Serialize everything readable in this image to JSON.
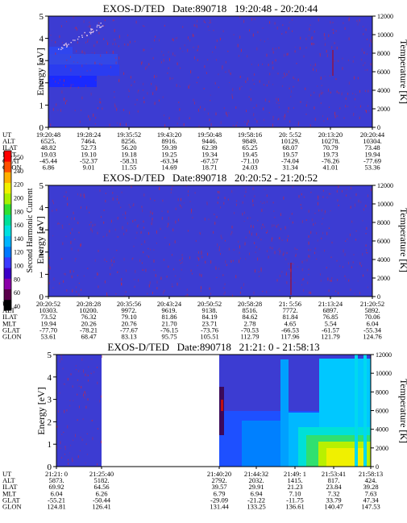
{
  "chart_data": [
    {
      "type": "heatmap",
      "title": "EXOS-D/TED   Date:890718   19:20:48 - 20:20:44",
      "ylabel": "Energy [eV]",
      "y2label": "Temperature [K]",
      "ylim": [
        0,
        5
      ],
      "y2lim": [
        0,
        12000
      ],
      "yticks": [
        "0",
        "1",
        "2",
        "3",
        "4",
        "5"
      ],
      "y2ticks": [
        "0",
        "2000",
        "4000",
        "6000",
        "8000",
        "10000",
        "12000"
      ],
      "ephemeris": {
        "row_labels": [
          "UT",
          "ALT",
          "ILAT",
          "MLT",
          "GLAT",
          "GLON"
        ],
        "columns": [
          [
            "19:20:48",
            "6525.",
            "48.82",
            "19.03",
            "-45.44",
            "6.86"
          ],
          [
            "19:28:24",
            "7464.",
            "52.73",
            "19.10",
            "-52.37",
            "9.01"
          ],
          [
            "19:35:52",
            "8256.",
            "56.20",
            "19.18",
            "-58.31",
            "11.55"
          ],
          [
            "19:43:20",
            "8916.",
            "59.39",
            "19.25",
            "-63.34",
            "14.69"
          ],
          [
            "19:50:48",
            "9446.",
            "62.39",
            "19.34",
            "-67.57",
            "18.71"
          ],
          [
            "19:58:16",
            "9849.",
            "65.25",
            "19.45",
            "-71.10",
            "24.03"
          ],
          [
            "20: 5:52",
            "10129.",
            "68.07",
            "19.57",
            "-74.04",
            "31.34"
          ],
          [
            "20:13:20",
            "10278.",
            "70.79",
            "19.73",
            "-76.26",
            "41.01"
          ],
          [
            "20:20:44",
            "10304.",
            "73.48",
            "19.94",
            "-77.69",
            "53.36"
          ]
        ]
      }
    },
    {
      "type": "heatmap",
      "title": "EXOS-D/TED   Date:890718   20:20:52 - 21:20:52",
      "ylabel": "Energy [eV]",
      "y2label": "Temperature [K]",
      "ylim": [
        0,
        5
      ],
      "y2lim": [
        0,
        12000
      ],
      "yticks": [
        "0",
        "1",
        "2",
        "3",
        "4",
        "5"
      ],
      "y2ticks": [
        "0",
        "2000",
        "4000",
        "6000",
        "8000",
        "10000",
        "12000"
      ],
      "ephemeris": {
        "row_labels": [
          "UT",
          "ALT",
          "ILAT",
          "MLT",
          "GLAT",
          "GLON"
        ],
        "columns": [
          [
            "20:20:52",
            "10303.",
            "73.52",
            "19.94",
            "-77.70",
            "53.61"
          ],
          [
            "20:28:28",
            "10200.",
            "76.32",
            "20.26",
            "-78.21",
            "68.47"
          ],
          [
            "20:35:56",
            "9972.",
            "79.10",
            "20.76",
            "-77.67",
            "83.13"
          ],
          [
            "20:43:24",
            "9619.",
            "81.86",
            "21.70",
            "-76.15",
            "95.75"
          ],
          [
            "20:50:52",
            "9138.",
            "84.19",
            "23.71",
            "-73.76",
            "105.51"
          ],
          [
            "20:58:28",
            "8516.",
            "84.62",
            "2.78",
            "-70.53",
            "112.79"
          ],
          [
            "21: 5:56",
            "7772.",
            "81.84",
            "4.65",
            "-66.53",
            "117.96"
          ],
          [
            "21:13:24",
            "6897.",
            "76.85",
            "5.54",
            "-61.57",
            "121.79"
          ],
          [
            "21:20:52",
            "5892.",
            "70.06",
            "6.04",
            "-55.34",
            "124.76"
          ]
        ]
      }
    },
    {
      "type": "heatmap",
      "title": "EXOS-D/TED   Date:890718   21:21: 0 - 21:58:13",
      "ylabel": "Energy [eV]",
      "y2label": "Temperature [K]",
      "ylim": [
        0,
        5
      ],
      "y2lim": [
        0,
        12000
      ],
      "yticks": [
        "0",
        "1",
        "2",
        "3",
        "4",
        "5"
      ],
      "y2ticks": [
        "0",
        "2000",
        "4000",
        "6000",
        "8000",
        "10000",
        "12000"
      ],
      "ephemeris": {
        "row_labels": [
          "UT",
          "ALT",
          "ILAT",
          "MLT",
          "GLAT",
          "GLON"
        ],
        "columns": [
          [
            "21:21: 0",
            "5873.",
            "69.92",
            "6.04",
            "-55.21",
            "124.81"
          ],
          [
            "21:25:40",
            "5182.",
            "64.56",
            "6.26",
            "-50.44",
            "126.41"
          ],
          [
            "21:40:20",
            "2792.",
            "39.57",
            "6.79",
            "-29.09",
            "131.44"
          ],
          [
            "21:44:32",
            "2032.",
            "29.91",
            "6.94",
            "-21.22",
            "133.25"
          ],
          [
            "21:49: 1",
            "1415.",
            "21.23",
            "7.10",
            "-11.75",
            "136.61"
          ],
          [
            "21:53:41",
            "817.",
            "23.84",
            "7.32",
            "33.79",
            "140.47"
          ],
          [
            "21:58:13",
            "424.",
            "39.28",
            "7.63",
            "47.34",
            "147.53"
          ]
        ]
      }
    }
  ],
  "colorbar": {
    "label": "Second Harmonic Current",
    "ticks": [
      "40",
      "60",
      "80",
      "100",
      "120",
      "140",
      "160",
      "180",
      "200",
      "220",
      "240",
      "250"
    ],
    "colors": [
      "#000000",
      "#5a004a",
      "#8a00a8",
      "#3a00c8",
      "#3a3aff",
      "#0078ff",
      "#00b4ff",
      "#00e0e0",
      "#00e098",
      "#30e030",
      "#a8f000",
      "#f0f000",
      "#ffb000",
      "#ff5000",
      "#ff0000"
    ]
  },
  "colors": {
    "background": "#3c3cd2",
    "bright_blue": "#1e50ff",
    "speckle": "#b82a50"
  }
}
